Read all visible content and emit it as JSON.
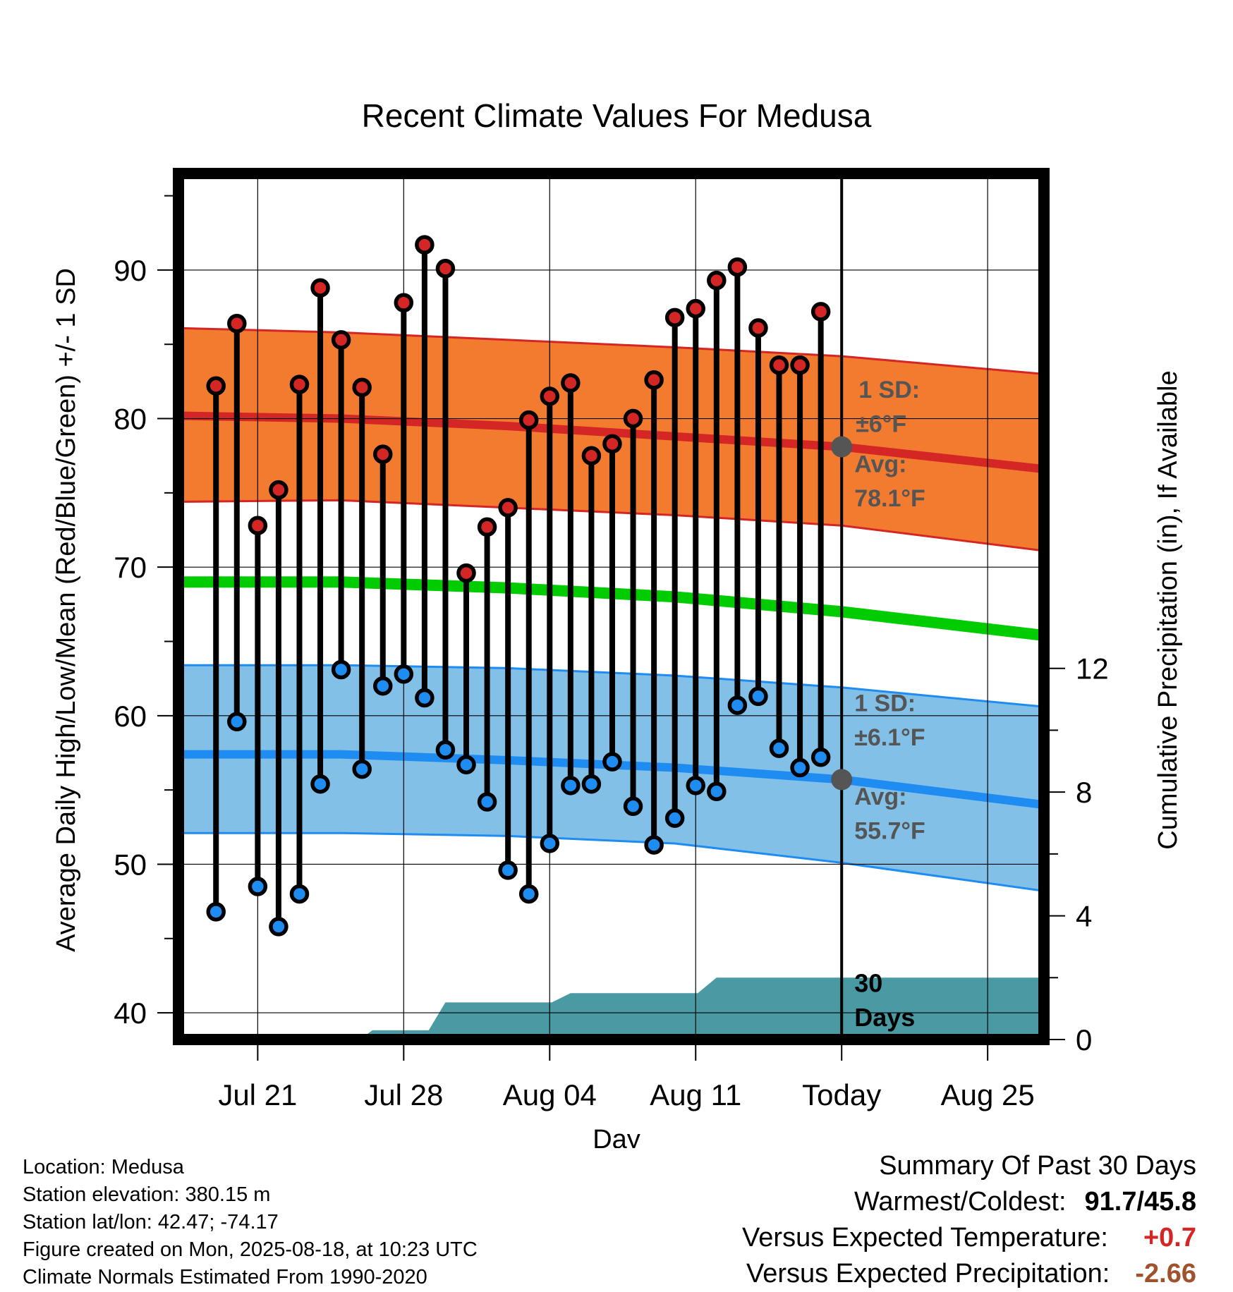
{
  "chart_data": {
    "type": "line",
    "title": "Recent Climate Values For Medusa",
    "xlabel": "Day",
    "ylabel": "Average Daily High/Low/Mean (Red/Blue/Green) +/- 1 SD",
    "y2label": "Cumulative Precipitation (in), If Available",
    "x_tick_labels": [
      "Jul 21",
      "Jul 28",
      "Aug 04",
      "Aug 11",
      "Today",
      "Aug 25"
    ],
    "y_ticks": [
      40,
      50,
      60,
      70,
      80,
      90
    ],
    "y2_ticks": [
      0,
      4,
      8,
      12
    ],
    "ylim": [
      38.2,
      96.5
    ],
    "y2lim": [
      0,
      28
    ],
    "xlim_days": [
      -31.8,
      9.7
    ],
    "grid": true,
    "dates": [
      "Jul 19",
      "Jul 20",
      "Jul 21",
      "Jul 22",
      "Jul 23",
      "Jul 24",
      "Jul 25",
      "Jul 26",
      "Jul 27",
      "Jul 28",
      "Jul 29",
      "Jul 30",
      "Jul 31",
      "Aug 01",
      "Aug 02",
      "Aug 03",
      "Aug 04",
      "Aug 05",
      "Aug 06",
      "Aug 07",
      "Aug 08",
      "Aug 09",
      "Aug 10",
      "Aug 11",
      "Aug 12",
      "Aug 13",
      "Aug 14",
      "Aug 15",
      "Aug 16",
      "Aug 17"
    ],
    "day_offsets": [
      -30,
      -29,
      -28,
      -27,
      -26,
      -25,
      -24,
      -23,
      -22,
      -21,
      -20,
      -19,
      -18,
      -17,
      -16,
      -15,
      -14,
      -13,
      -12,
      -11,
      -10,
      -9,
      -8,
      -7,
      -6,
      -5,
      -4,
      -3,
      -2,
      -1
    ],
    "daily_high": [
      82.2,
      86.4,
      72.8,
      75.2,
      82.3,
      88.8,
      85.3,
      82.1,
      77.6,
      87.8,
      91.7,
      90.1,
      69.6,
      72.7,
      74.0,
      79.9,
      81.5,
      82.4,
      77.5,
      78.3,
      80.0,
      82.6,
      86.8,
      87.4,
      89.3,
      90.2,
      86.1,
      83.6,
      83.6,
      87.2
    ],
    "daily_low": [
      46.8,
      59.6,
      48.5,
      45.8,
      48.0,
      55.4,
      63.1,
      56.4,
      62.0,
      62.8,
      61.2,
      57.7,
      56.7,
      54.2,
      49.6,
      48.0,
      51.4,
      55.3,
      55.4,
      56.9,
      53.9,
      51.3,
      53.1,
      55.3,
      54.9,
      60.7,
      61.3,
      57.8,
      56.5,
      57.2
    ],
    "normal_high": {
      "x": [
        -32,
        -24,
        -16,
        -8,
        0,
        9.7
      ],
      "y": [
        80.2,
        80.0,
        79.5,
        78.8,
        78.1,
        76.6
      ],
      "sd_upper": [
        86.1,
        85.8,
        85.3,
        84.8,
        84.2,
        83.0
      ],
      "sd_lower": [
        74.4,
        74.5,
        74.0,
        73.5,
        72.8,
        71.1
      ]
    },
    "normal_mean": {
      "x": [
        -32,
        -24,
        -16,
        -8,
        0,
        9.7
      ],
      "y": [
        69.0,
        69.0,
        68.6,
        68.0,
        67.0,
        65.4
      ]
    },
    "normal_low": {
      "x": [
        -32,
        -24,
        -16,
        -8,
        0,
        9.7
      ],
      "y": [
        57.4,
        57.4,
        57.0,
        56.5,
        55.7,
        54.0
      ],
      "sd_upper": [
        63.4,
        63.4,
        63.2,
        62.7,
        61.9,
        60.6
      ],
      "sd_lower": [
        52.1,
        52.1,
        51.9,
        51.4,
        50.1,
        48.2
      ]
    },
    "cumulative_precip": {
      "x": [
        -23.1,
        -22.5,
        -19.8,
        -19.0,
        -18.1,
        -13.9,
        -13.0,
        -6.9,
        -6.0,
        9.7
      ],
      "y": [
        0.0,
        0.3,
        0.3,
        1.2,
        1.2,
        1.2,
        1.5,
        1.5,
        2.0,
        2.0
      ]
    },
    "annotations": {
      "high_sd": [
        "1 SD:",
        "±6°F"
      ],
      "high_avg": [
        "Avg:",
        "78.1°F"
      ],
      "low_sd": [
        "1 SD:",
        "±6.1°F"
      ],
      "low_avg": [
        "Avg:",
        "55.7°F"
      ],
      "days": [
        "30",
        "Days"
      ]
    },
    "colors": {
      "high_band": "#f27b2f",
      "high_line": "#d42624",
      "high_dot": "#d42624",
      "low_band": "#82c0e8",
      "low_line": "#1e8cf0",
      "low_dot": "#1e8cf0",
      "mean_line": "#00cc00",
      "precip": "#4a9aa4",
      "today_marker": "#555555"
    }
  },
  "footer_left": {
    "line1": "Location: Medusa",
    "line2": "Station elevation: 380.15 m",
    "line3": "Station lat/lon: 42.47; -74.17",
    "line4": "Figure created on Mon, 2025-08-18, at 10:23 UTC",
    "line5": "Climate Normals Estimated From 1990-2020"
  },
  "summary": {
    "title": "Summary Of Past 30 Days",
    "warmest_label": "Warmest/Coldest:",
    "warmest_value": "91.7/45.8",
    "temp_label": "Versus Expected Temperature:",
    "temp_value": "+0.7",
    "temp_color": "#d42624",
    "precip_label": "Versus Expected Precipitation:",
    "precip_value": "-2.66",
    "precip_color": "#a0522d"
  }
}
